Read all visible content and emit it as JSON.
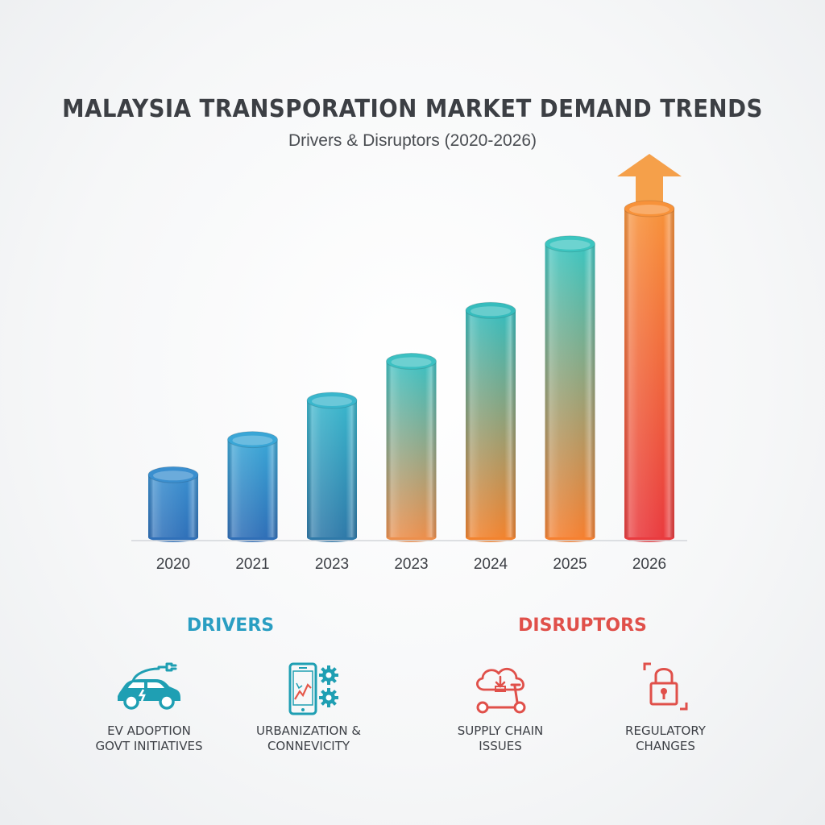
{
  "chart_data": {
    "type": "bar",
    "title": "MALAYSIA TRANSPORATION MARKET DEMAND TRENDS",
    "subtitle": "Drivers & Disruptors (2020-2026)",
    "categories": [
      "2020",
      "2021",
      "2023",
      "2023",
      "2024",
      "2025",
      "2026"
    ],
    "values": [
      80,
      125,
      175,
      225,
      290,
      375,
      420
    ],
    "ylim": [
      0,
      420
    ],
    "grid": false,
    "trend_arrow": "up",
    "colors": {
      "bar_top": [
        "#3a8fcf",
        "#3aa6d6",
        "#3ab6cc",
        "#3cc0c2",
        "#36bcbd",
        "#3cc5c0",
        "#f7923a"
      ],
      "bar_bottom": [
        "#2f6fb8",
        "#2f6db6",
        "#2f78a8",
        "#f08e4a",
        "#f5822c",
        "#f87f2e",
        "#e93a3f"
      ],
      "arrow": "#f5a04a"
    }
  },
  "drivers": {
    "heading": "DRIVERS",
    "color": "#2a9ec2",
    "items": [
      {
        "label_line1": "EV ADOPTION",
        "label_line2": "GOVT INITIATIVES",
        "icon": "electric-car-icon"
      },
      {
        "label_line1": "URBANIZATION &",
        "label_line2": "CONNEVICITY",
        "icon": "smartphone-gears-icon"
      }
    ]
  },
  "disruptors": {
    "heading": "DISRUPTORS",
    "color": "#e0504a",
    "items": [
      {
        "label_line1": "SUPPLY CHAIN",
        "label_line2": "ISSUES",
        "icon": "cloud-scooter-icon"
      },
      {
        "label_line1": "REGULATORY",
        "label_line2": "CHANGES",
        "icon": "padlock-icon"
      }
    ]
  }
}
